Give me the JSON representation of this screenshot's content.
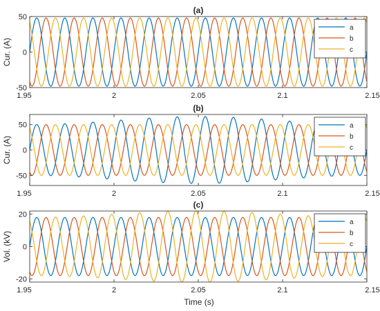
{
  "figure": {
    "xlabel": "Time (s)"
  },
  "chart_data": [
    {
      "type": "line",
      "title": "(a)",
      "ylabel": "Cur. (A)",
      "xlim": [
        1.95,
        2.15
      ],
      "ylim": [
        -50,
        50
      ],
      "xticks": [
        1.95,
        2,
        2.05,
        2.1,
        2.15
      ],
      "xtick_labels": [
        "1.95",
        "2",
        "2.05",
        "2.1",
        "2.15"
      ],
      "yticks": [
        -50,
        0,
        50
      ],
      "ytick_labels": [
        "-50",
        "0",
        "50"
      ],
      "legend_position": "top-right",
      "frequency_hz": 60,
      "series": [
        {
          "name": "a",
          "color": "#0072BD",
          "waveform": "sine",
          "amplitude": 48,
          "phase_deg": 0
        },
        {
          "name": "b",
          "color": "#D95319",
          "waveform": "sine",
          "amplitude": 48,
          "phase_deg": -120
        },
        {
          "name": "c",
          "color": "#EDB120",
          "waveform": "sine",
          "amplitude": 48,
          "phase_deg": 120
        }
      ]
    },
    {
      "type": "line",
      "title": "(b)",
      "ylabel": "Cur. (A)",
      "xlim": [
        1.95,
        2.15
      ],
      "ylim": [
        -70,
        70
      ],
      "xticks": [
        1.95,
        2,
        2.05,
        2.1,
        2.15
      ],
      "xtick_labels": [
        "1.95",
        "2",
        "2.05",
        "2.1",
        "2.15"
      ],
      "yticks": [
        -50,
        0,
        50
      ],
      "ytick_labels": [
        "-50",
        "0",
        "50"
      ],
      "legend_position": "top-right",
      "frequency_hz": 60,
      "series": [
        {
          "name": "a",
          "color": "#0072BD",
          "waveform": "sine",
          "amplitude": 50,
          "amplitude_peak": 66,
          "phase_deg": 0
        },
        {
          "name": "b",
          "color": "#D95319",
          "waveform": "sine",
          "amplitude": 50,
          "phase_deg": -120
        },
        {
          "name": "c",
          "color": "#EDB120",
          "waveform": "sine",
          "amplitude": 50,
          "phase_deg": 120
        }
      ]
    },
    {
      "type": "line",
      "title": "(c)",
      "ylabel": "Vol. (kV)",
      "xlim": [
        1.95,
        2.15
      ],
      "ylim": [
        -22,
        22
      ],
      "xticks": [
        1.95,
        2,
        2.05,
        2.1,
        2.15
      ],
      "xtick_labels": [
        "1.95",
        "2",
        "2.05",
        "2.1",
        "2.15"
      ],
      "yticks": [
        -20,
        0,
        20
      ],
      "ytick_labels": [
        "-20",
        "0",
        "20"
      ],
      "legend_position": "top-right",
      "frequency_hz": 60,
      "series": [
        {
          "name": "a",
          "color": "#0072BD",
          "waveform": "sine",
          "amplitude": 18,
          "phase_deg": 0
        },
        {
          "name": "b",
          "color": "#D95319",
          "waveform": "sine",
          "amplitude": 18,
          "phase_deg": -120
        },
        {
          "name": "c",
          "color": "#EDB120",
          "waveform": "sine",
          "amplitude": 18,
          "amplitude_peak": 22,
          "phase_deg": 120
        }
      ]
    }
  ]
}
